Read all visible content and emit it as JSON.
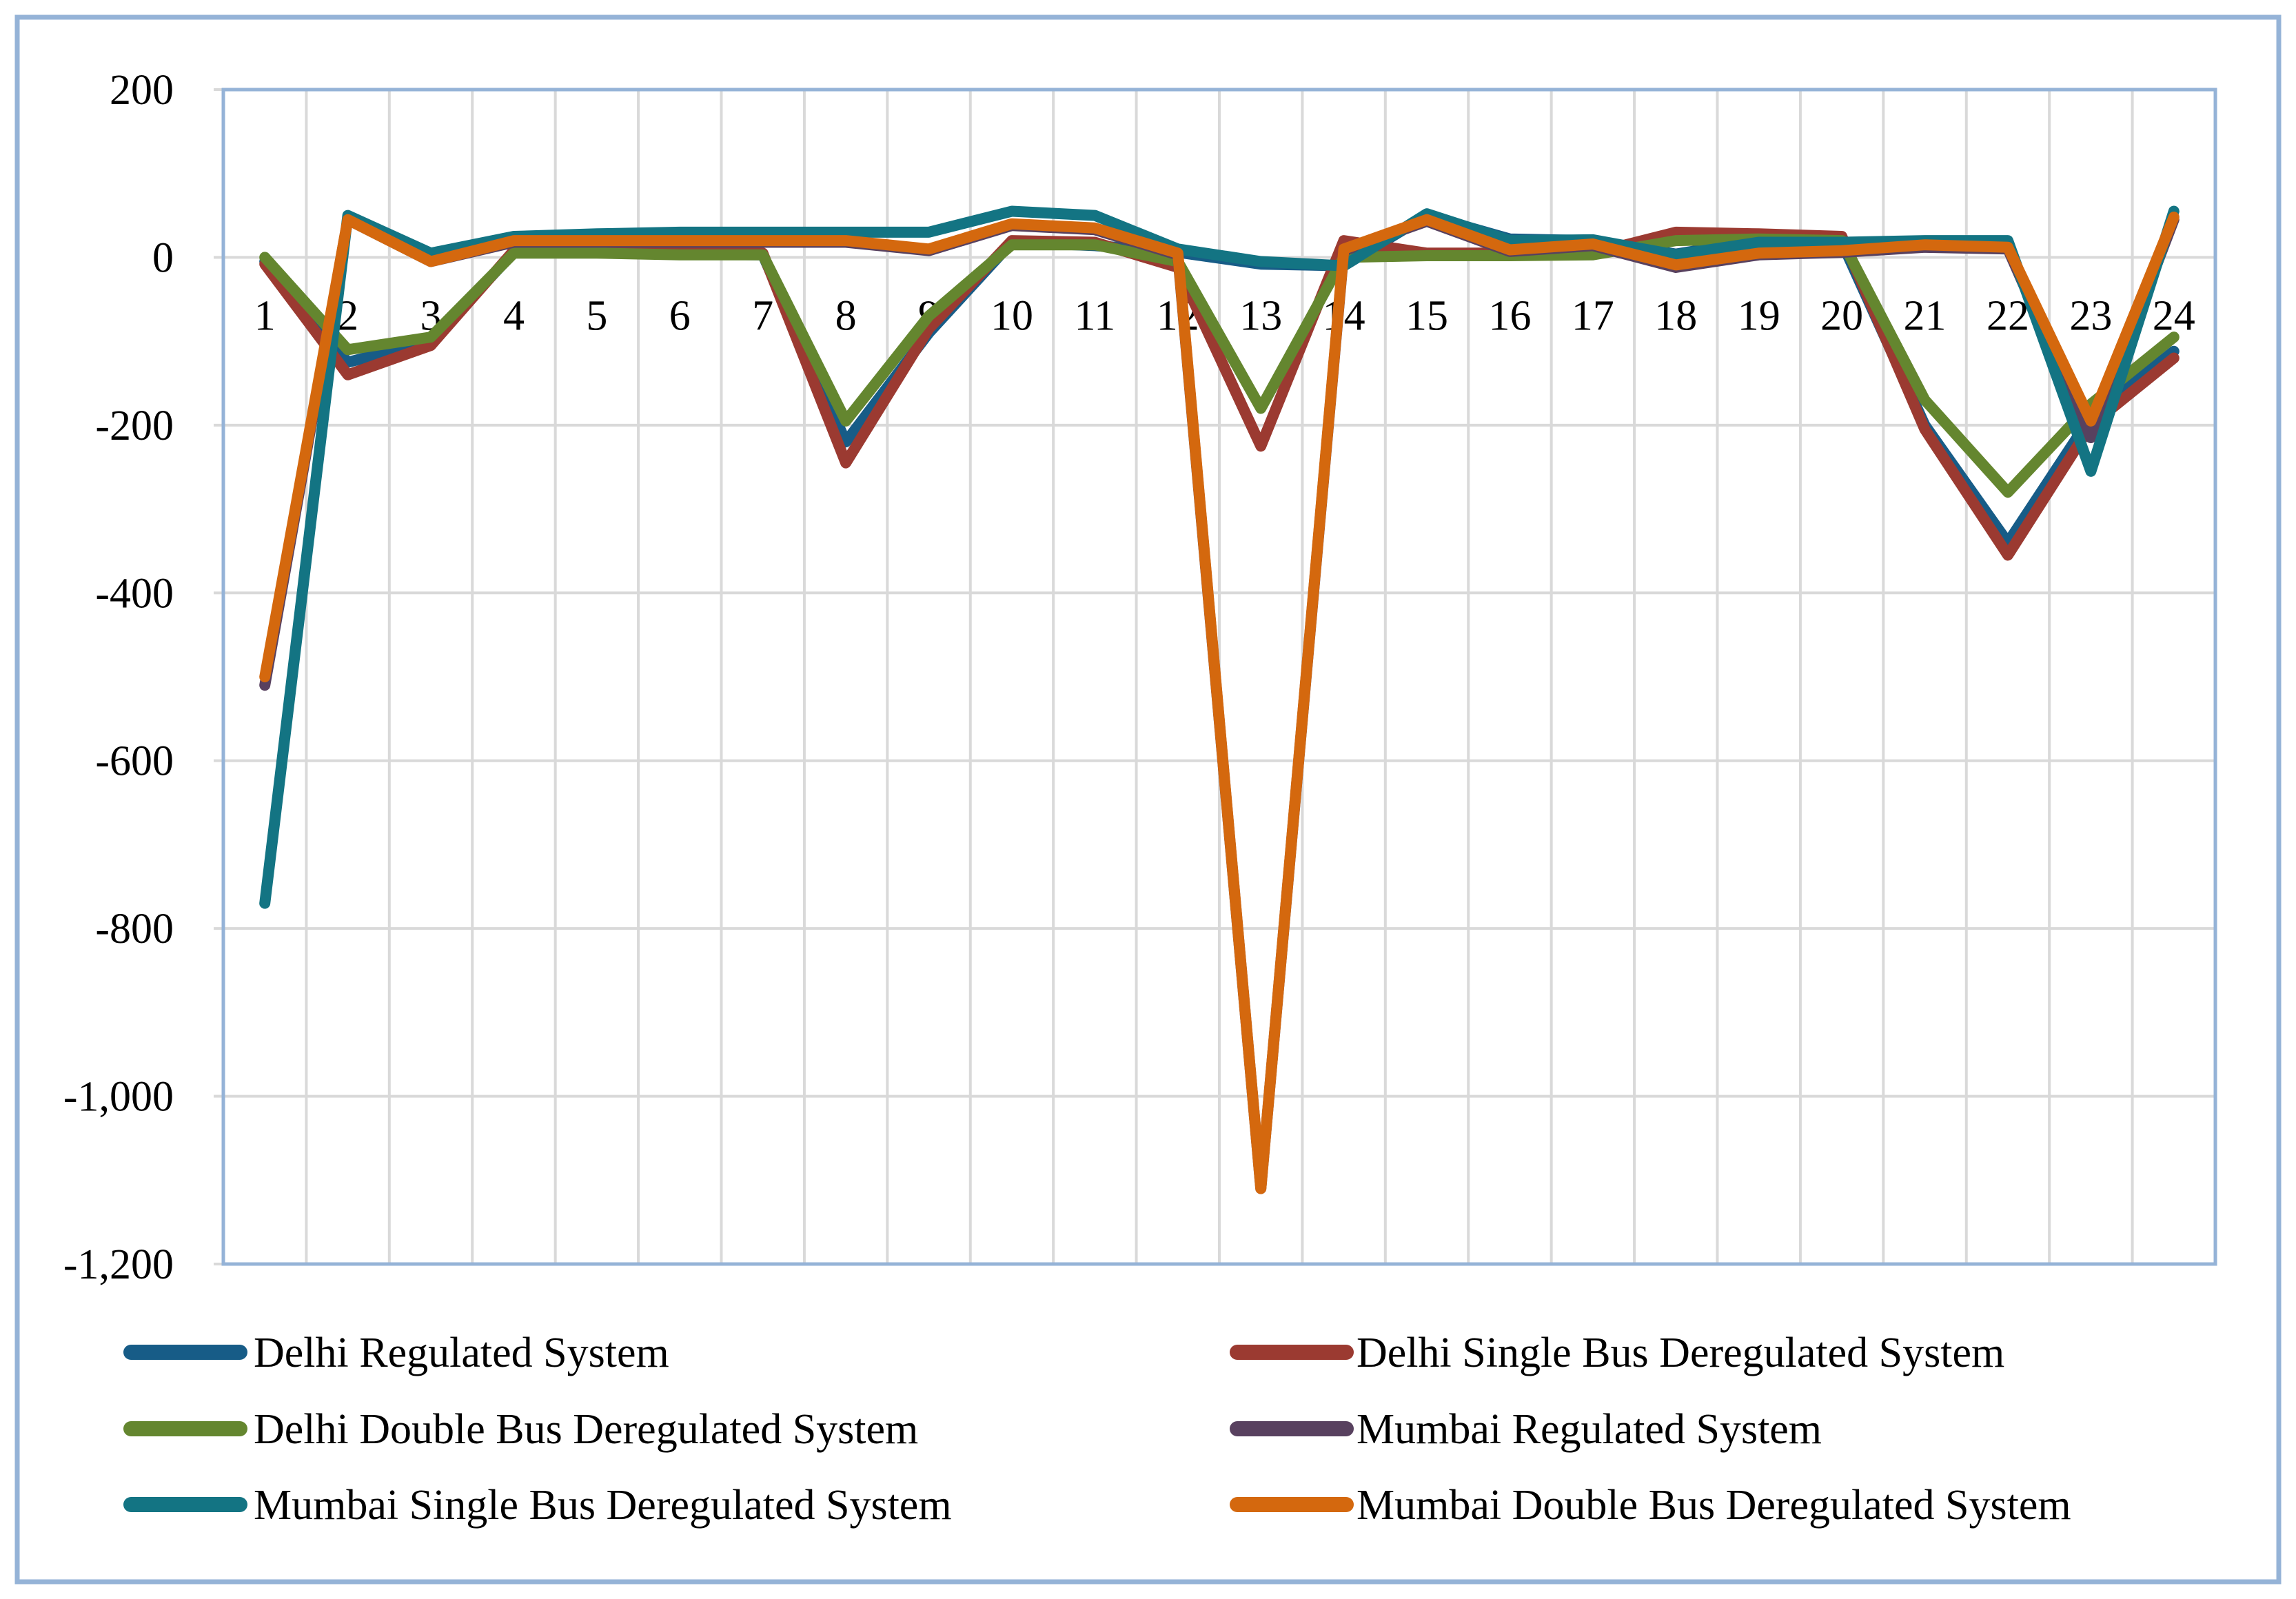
{
  "frame": {
    "background": "#FFFFFF",
    "outer_border_color": "#95B3D7"
  },
  "plot": {
    "background": "#FFFFFF",
    "border_color": "#95B3D7",
    "gridline_color": "#D9D9D9"
  },
  "legend": {
    "columns": 2,
    "position": "bottom"
  },
  "chart_data": {
    "type": "line",
    "x": [
      1,
      2,
      3,
      4,
      5,
      6,
      7,
      8,
      9,
      10,
      11,
      12,
      13,
      14,
      15,
      16,
      17,
      18,
      19,
      20,
      21,
      22,
      23,
      24
    ],
    "xlabel": "",
    "ylabel": "",
    "ylim": [
      -1200,
      200
    ],
    "yticks": [
      200,
      0,
      -200,
      -400,
      -600,
      -800,
      -1000,
      -1200
    ],
    "yticklabels": [
      "200",
      "0",
      "-200",
      "-400",
      "-600",
      "-800",
      "-1,000",
      "-1,200"
    ],
    "grid": true,
    "legend_position": "bottom",
    "series": [
      {
        "name": "Delhi Regulated System",
        "color": "#175C87",
        "values": [
          -5,
          -125,
          -100,
          6,
          6,
          4,
          3,
          -220,
          -90,
          18,
          14,
          6,
          -8,
          -10,
          50,
          22,
          20,
          4,
          20,
          18,
          -200,
          -340,
          -190,
          -112
        ]
      },
      {
        "name": "Delhi Single Bus Deregulated System",
        "color": "#9B3A31",
        "values": [
          -8,
          -140,
          -105,
          8,
          8,
          6,
          5,
          -245,
          -85,
          20,
          18,
          -12,
          -225,
          20,
          5,
          5,
          5,
          30,
          28,
          25,
          -205,
          -355,
          -200,
          -120
        ]
      },
      {
        "name": "Delhi Double Bus Deregulated System",
        "color": "#64862F",
        "values": [
          0,
          -110,
          -95,
          5,
          5,
          3,
          3,
          -195,
          -70,
          15,
          15,
          -5,
          -180,
          0,
          2,
          2,
          3,
          20,
          22,
          20,
          -170,
          -280,
          -175,
          -95
        ]
      },
      {
        "name": "Mumbai Regulated System",
        "color": "#58415F",
        "values": [
          -510,
          45,
          -5,
          18,
          18,
          18,
          18,
          18,
          8,
          38,
          33,
          3,
          -1110,
          8,
          43,
          7,
          14,
          -12,
          3,
          6,
          12,
          10,
          -215,
          45
        ]
      },
      {
        "name": "Mumbai Single Bus Deregulated System",
        "color": "#137483",
        "values": [
          -770,
          50,
          5,
          25,
          28,
          30,
          30,
          30,
          30,
          55,
          50,
          10,
          -5,
          -10,
          52,
          20,
          21,
          3,
          18,
          18,
          20,
          20,
          -255,
          55
        ]
      },
      {
        "name": "Mumbai Double Bus Deregulated System",
        "color": "#D4680E",
        "values": [
          -500,
          45,
          -5,
          20,
          20,
          20,
          20,
          20,
          10,
          40,
          35,
          5,
          -1110,
          10,
          45,
          9,
          16,
          -9,
          5,
          8,
          15,
          12,
          -195,
          48
        ]
      }
    ]
  }
}
